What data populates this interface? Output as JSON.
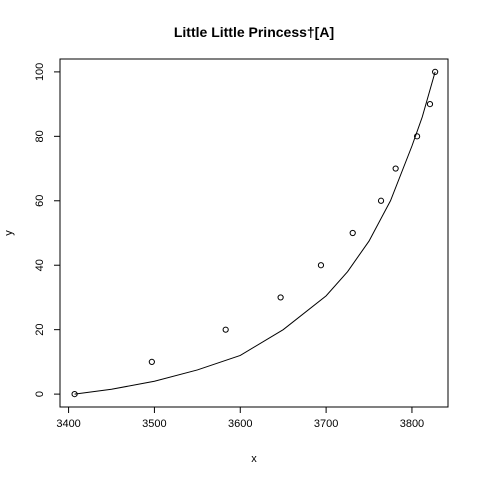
{
  "chart_data": {
    "type": "scatter",
    "title": "Little Little Princess†[A]",
    "xlabel": "x",
    "ylabel": "y",
    "xlim": [
      3390,
      3842
    ],
    "ylim": [
      -4,
      104
    ],
    "x_ticks": [
      3400,
      3500,
      3600,
      3700,
      3800
    ],
    "y_ticks": [
      0,
      20,
      40,
      60,
      80,
      100
    ],
    "grid": false,
    "legend": "none",
    "series": [
      {
        "type": "scatter",
        "marker": "open-circle",
        "x": [
          3407,
          3497,
          3583,
          3647,
          3694,
          3731,
          3764,
          3781,
          3806,
          3821,
          3827
        ],
        "y": [
          0,
          10,
          20,
          30,
          40,
          50,
          60,
          70,
          80,
          90,
          100
        ]
      },
      {
        "type": "line",
        "x": [
          3407,
          3450,
          3500,
          3550,
          3600,
          3650,
          3700,
          3725,
          3750,
          3775,
          3800,
          3812,
          3827
        ],
        "y": [
          0,
          1.5,
          4,
          7.5,
          12,
          20,
          30.5,
          38,
          47.5,
          60,
          77,
          86,
          100
        ]
      }
    ],
    "colors": {
      "foreground": "#000000",
      "background": "#ffffff"
    }
  }
}
